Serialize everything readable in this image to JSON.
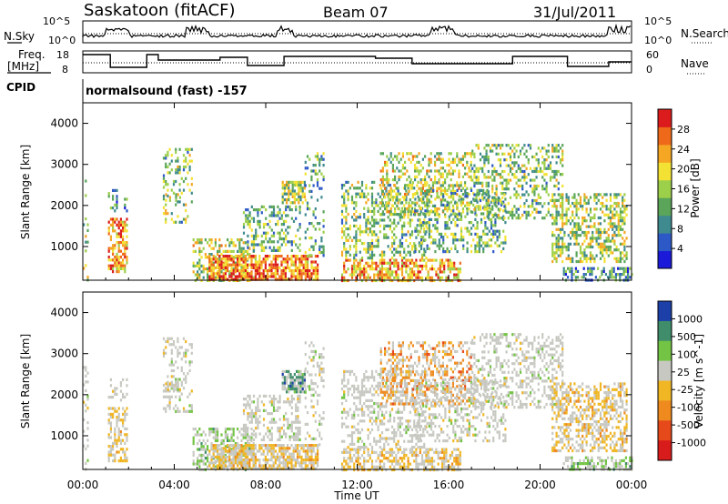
{
  "header": {
    "station": "Saskatoon (fitACF)",
    "beam": "Beam 07",
    "date": "31/Jul/2011"
  },
  "status": {
    "nsky_label": "N.Sky",
    "nsearch_label": "N.Search",
    "freq_label": "Freq.",
    "freq_unit": "[MHz]",
    "nave_label": "Nave",
    "cpid_label": "CPID",
    "cpid_text": "normalsound (fast) -157",
    "noise_ticks": {
      "top": "10^5",
      "bottom": "10^0"
    },
    "freq_ticks": {
      "top": "18",
      "bottom": "8"
    },
    "nave_ticks": {
      "top": "60",
      "bottom": "0"
    }
  },
  "chart_data": [
    {
      "type": "heatmap",
      "name": "power",
      "ylabel": "Slant Range [km]",
      "colorbar_label": "Power [dB]",
      "ylim": [
        180,
        4500
      ],
      "y_ticks": [
        1000,
        2000,
        3000,
        4000
      ],
      "colorbar_ticks": [
        "4",
        "8",
        "12",
        "16",
        "20",
        "24",
        "28"
      ],
      "colorbar_range": [
        0,
        30
      ],
      "colorbar_colors": [
        "#1a1ad8",
        "#2d59c6",
        "#3f8a8e",
        "#5aa55a",
        "#9ccf4a",
        "#f3e233",
        "#f5a623",
        "#ee6a1a",
        "#dc1c1c"
      ]
    },
    {
      "type": "heatmap",
      "name": "velocity",
      "ylabel": "Slant Range [km]",
      "colorbar_label": "Velocity [m s^-1]",
      "ylim": [
        180,
        4500
      ],
      "y_ticks": [
        1000,
        2000,
        3000,
        4000
      ],
      "colorbar_ticks": [
        "1000",
        "500",
        "100",
        "25",
        "-25",
        "-100",
        "-500",
        "-1000"
      ],
      "colorbar_colors": [
        "#1c3fa8",
        "#3f8d6a",
        "#73c444",
        "#c8c8c2",
        "#f0b623",
        "#ee8a1e",
        "#e64a1a",
        "#d81c1c"
      ]
    }
  ],
  "x_axis": {
    "label": "Time UT",
    "ticks": [
      "00:00",
      "04:00",
      "08:00",
      "12:00",
      "16:00",
      "20:00",
      "00:00"
    ]
  }
}
